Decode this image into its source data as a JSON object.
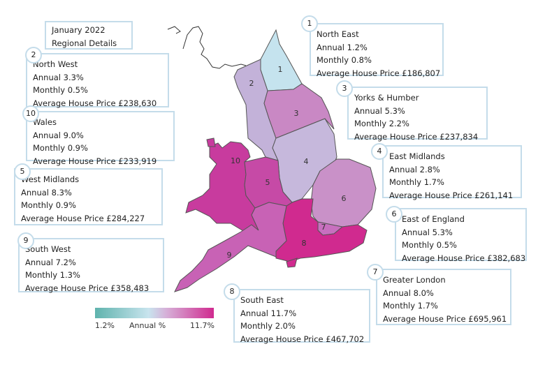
{
  "title": {
    "line1": "January 2022",
    "line2": "Regional Details"
  },
  "legend": {
    "min": "1.2%",
    "label": "Annual %",
    "max": "11.7%",
    "color_low": "#5fb3ad",
    "color_high": "#d02a8f"
  },
  "regions": [
    {
      "num": "1",
      "name": "North East",
      "annual": "Annual 1.2%",
      "monthly": "Monthly 0.8%",
      "price": "Average House Price £186,807",
      "color": "#c5e3ee"
    },
    {
      "num": "2",
      "name": "North West",
      "annual": "Annual 3.3%",
      "monthly": "Monthly 0.5%",
      "price": "Average House Price £238,630",
      "color": "#c3b2d9"
    },
    {
      "num": "3",
      "name": "Yorks & Humber",
      "annual": "Annual 5.3%",
      "monthly": "Monthly 2.2%",
      "price": "Average House Price £237,834",
      "color": "#c988c4"
    },
    {
      "num": "4",
      "name": "East Midlands",
      "annual": "Annual 2.8%",
      "monthly": "Monthly 1.7%",
      "price": "Average House Price £261,141",
      "color": "#c6b8dc"
    },
    {
      "num": "5",
      "name": "West Midlands",
      "annual": "Annual 8.3%",
      "monthly": "Monthly 0.9%",
      "price": "Average House Price £284,227",
      "color": "#c64aa6"
    },
    {
      "num": "6",
      "name": "East of England",
      "annual": "Annual 5.3%",
      "monthly": "Monthly 0.5%",
      "price": "Average House Price £382,683",
      "color": "#c991c8"
    },
    {
      "num": "7",
      "name": "Greater London",
      "annual": "Annual 8.0%",
      "monthly": "Monthly 1.7%",
      "price": "Average House Price £695,961",
      "color": "#c870bf"
    },
    {
      "num": "8",
      "name": "South East",
      "annual": "Annual 11.7%",
      "monthly": "Monthly 2.0%",
      "price": "Average House Price £467,702",
      "color": "#d02a8f"
    },
    {
      "num": "9",
      "name": "South West",
      "annual": "Annual 7.2%",
      "monthly": "Monthly 1.3%",
      "price": "Average House Price £358,483",
      "color": "#c862b5"
    },
    {
      "num": "10",
      "name": "Wales",
      "annual": "Annual 9.0%",
      "monthly": "Monthly 0.9%",
      "price": "Average House Price £233,919",
      "color": "#c83b9e"
    }
  ]
}
